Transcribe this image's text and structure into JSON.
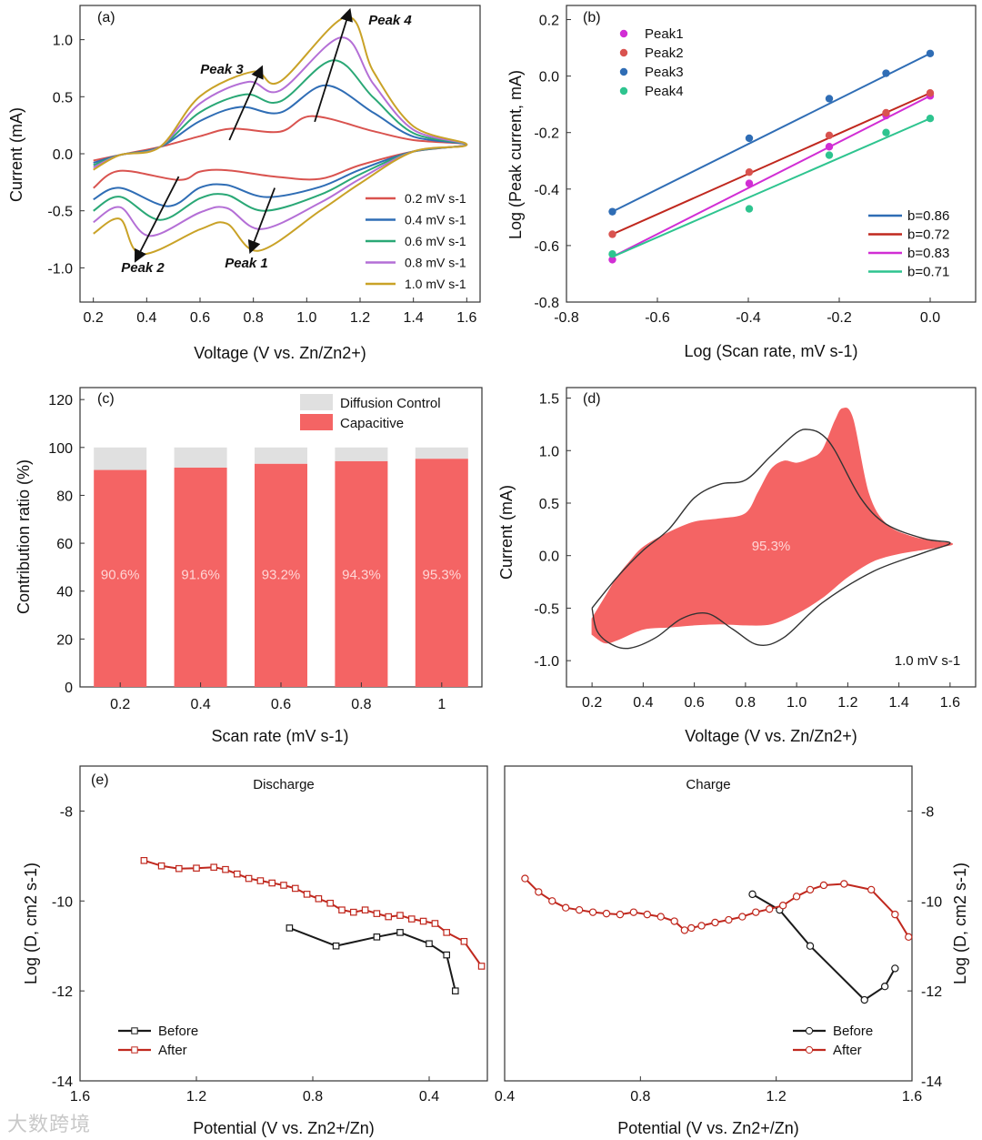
{
  "watermark": "大数跨境",
  "chart_data": [
    {
      "panel": "(a)",
      "type": "line",
      "xlabel": "Voltage (V vs. Zn/Zn2+)",
      "ylabel": "Current (mA)",
      "xlim": [
        0.15,
        1.65
      ],
      "ylim": [
        -1.3,
        1.3
      ],
      "xticks": [
        0.2,
        0.4,
        0.6,
        0.8,
        1.0,
        1.2,
        1.4,
        1.6
      ],
      "yticks": [
        -1.0,
        -0.5,
        0.0,
        0.5,
        1.0
      ],
      "legend_position": "lower-right",
      "series": [
        {
          "name": "0.2 mV s-1",
          "color": "#d9534f",
          "ox_peak3": [
            0.72,
            0.22
          ],
          "ox_peak4": [
            1.02,
            0.33
          ],
          "red_peak1": [
            0.88,
            -0.2
          ],
          "red_peak2": [
            0.52,
            -0.23
          ]
        },
        {
          "name": "0.4 mV s-1",
          "color": "#2f6db5",
          "ox_peak3": [
            0.75,
            0.41
          ],
          "ox_peak4": [
            1.07,
            0.6
          ],
          "red_peak1": [
            0.85,
            -0.38
          ],
          "red_peak2": [
            0.48,
            -0.46
          ]
        },
        {
          "name": "0.6 mV s-1",
          "color": "#2aa876",
          "ox_peak3": [
            0.77,
            0.52
          ],
          "ox_peak4": [
            1.1,
            0.82
          ],
          "red_peak1": [
            0.84,
            -0.5
          ],
          "red_peak2": [
            0.45,
            -0.58
          ]
        },
        {
          "name": "0.8 mV s-1",
          "color": "#b46fd6",
          "ox_peak3": [
            0.78,
            0.63
          ],
          "ox_peak4": [
            1.13,
            1.02
          ],
          "red_peak1": [
            0.83,
            -0.66
          ],
          "red_peak2": [
            0.41,
            -0.72
          ]
        },
        {
          "name": "1.0 mV s-1",
          "color": "#c9a227",
          "ox_peak3": [
            0.8,
            0.72
          ],
          "ox_peak4": [
            1.15,
            1.2
          ],
          "red_peak1": [
            0.82,
            -0.85
          ],
          "red_peak2": [
            0.38,
            -0.88
          ]
        }
      ],
      "annotations": [
        "Peak 1",
        "Peak 2",
        "Peak 3",
        "Peak 4"
      ]
    },
    {
      "panel": "(b)",
      "type": "scatter",
      "xlabel": "Log (Scan rate, mV s-1)",
      "ylabel": "Log (Peak current, mA)",
      "xlim": [
        -0.8,
        0.1
      ],
      "ylim": [
        -0.8,
        0.25
      ],
      "xticks": [
        -0.8,
        -0.6,
        -0.4,
        -0.2,
        0.0
      ],
      "yticks": [
        -0.8,
        -0.6,
        -0.4,
        -0.2,
        0.0,
        0.2
      ],
      "x": [
        -0.699,
        -0.398,
        -0.222,
        -0.097,
        0.0
      ],
      "series": [
        {
          "name": "Peak1",
          "color": "#d12ed4",
          "values": [
            -0.65,
            -0.38,
            -0.25,
            -0.14,
            -0.07
          ]
        },
        {
          "name": "Peak2",
          "color": "#d9534f",
          "values": [
            -0.56,
            -0.34,
            -0.21,
            -0.13,
            -0.06
          ]
        },
        {
          "name": "Peak3",
          "color": "#2f6db5",
          "values": [
            -0.48,
            -0.22,
            -0.08,
            0.01,
            0.08
          ]
        },
        {
          "name": "Peak4",
          "color": "#2ec48f",
          "values": [
            -0.63,
            -0.47,
            -0.28,
            -0.2,
            -0.15
          ]
        }
      ],
      "fits": [
        {
          "label": "b=0.86",
          "color": "#2f6db5",
          "y_start": -0.48,
          "y_end": 0.08
        },
        {
          "label": "b=0.72",
          "color": "#c0281e",
          "y_start": -0.56,
          "y_end": -0.06
        },
        {
          "label": "b=0.83",
          "color": "#d12ed4",
          "y_start": -0.64,
          "y_end": -0.07
        },
        {
          "label": "b=0.71",
          "color": "#2ec48f",
          "y_start": -0.64,
          "y_end": -0.15
        }
      ],
      "legend_position": "top-left"
    },
    {
      "panel": "(c)",
      "type": "bar",
      "xlabel": "Scan rate (mV s-1)",
      "ylabel": "Contribution ratio (%)",
      "ylim": [
        0,
        125
      ],
      "yticks": [
        0,
        20,
        40,
        60,
        80,
        100,
        120
      ],
      "categories": [
        "0.2",
        "0.4",
        "0.6",
        "0.8",
        "1"
      ],
      "series": [
        {
          "name": "Capacitive",
          "color": "#f46464",
          "values": [
            90.6,
            91.6,
            93.2,
            94.3,
            95.3
          ]
        },
        {
          "name": "Diffusion Control",
          "color": "#e0e0e0",
          "values": [
            9.4,
            8.4,
            6.8,
            5.7,
            4.7
          ]
        }
      ],
      "data_labels": [
        "90.6%",
        "91.6%",
        "93.2%",
        "94.3%",
        "95.3%"
      ],
      "legend_position": "top-right"
    },
    {
      "panel": "(d)",
      "type": "area",
      "xlabel": "Voltage (V vs. Zn/Zn2+)",
      "ylabel": "Current (mA)",
      "xlim": [
        0.1,
        1.7
      ],
      "ylim": [
        -1.25,
        1.6
      ],
      "xticks": [
        0.2,
        0.4,
        0.6,
        0.8,
        1.0,
        1.2,
        1.4,
        1.6
      ],
      "yticks": [
        -1.0,
        -0.5,
        0.0,
        0.5,
        1.0,
        1.5
      ],
      "fill_label": "95.3%",
      "note": "1.0 mV s-1",
      "capacitive_upper": [
        [
          0.2,
          -0.6
        ],
        [
          0.25,
          -0.4
        ],
        [
          0.3,
          -0.2
        ],
        [
          0.35,
          -0.05
        ],
        [
          0.4,
          0.08
        ],
        [
          0.5,
          0.22
        ],
        [
          0.6,
          0.32
        ],
        [
          0.7,
          0.35
        ],
        [
          0.8,
          0.4
        ],
        [
          0.85,
          0.6
        ],
        [
          0.9,
          0.82
        ],
        [
          0.95,
          0.9
        ],
        [
          1.0,
          0.88
        ],
        [
          1.05,
          0.92
        ],
        [
          1.1,
          1.0
        ],
        [
          1.15,
          1.28
        ],
        [
          1.18,
          1.4
        ],
        [
          1.22,
          1.3
        ],
        [
          1.28,
          0.6
        ],
        [
          1.35,
          0.3
        ],
        [
          1.45,
          0.18
        ],
        [
          1.55,
          0.13
        ],
        [
          1.6,
          0.12
        ]
      ],
      "capacitive_lower": [
        [
          1.6,
          0.1
        ],
        [
          1.5,
          0.06
        ],
        [
          1.4,
          0.02
        ],
        [
          1.3,
          -0.05
        ],
        [
          1.2,
          -0.2
        ],
        [
          1.1,
          -0.4
        ],
        [
          1.0,
          -0.55
        ],
        [
          0.9,
          -0.65
        ],
        [
          0.8,
          -0.66
        ],
        [
          0.7,
          -0.65
        ],
        [
          0.6,
          -0.66
        ],
        [
          0.5,
          -0.68
        ],
        [
          0.4,
          -0.7
        ],
        [
          0.3,
          -0.8
        ],
        [
          0.25,
          -0.83
        ],
        [
          0.2,
          -0.75
        ]
      ],
      "cv_curve": [
        [
          0.2,
          -0.5
        ],
        [
          0.3,
          -0.2
        ],
        [
          0.4,
          0.05
        ],
        [
          0.5,
          0.25
        ],
        [
          0.6,
          0.55
        ],
        [
          0.7,
          0.68
        ],
        [
          0.8,
          0.72
        ],
        [
          0.9,
          0.95
        ],
        [
          1.0,
          1.17
        ],
        [
          1.05,
          1.2
        ],
        [
          1.1,
          1.15
        ],
        [
          1.15,
          1.0
        ],
        [
          1.25,
          0.55
        ],
        [
          1.35,
          0.3
        ],
        [
          1.5,
          0.16
        ],
        [
          1.6,
          0.12
        ],
        [
          1.5,
          0.03
        ],
        [
          1.3,
          -0.15
        ],
        [
          1.1,
          -0.45
        ],
        [
          0.95,
          -0.78
        ],
        [
          0.85,
          -0.85
        ],
        [
          0.75,
          -0.7
        ],
        [
          0.65,
          -0.55
        ],
        [
          0.55,
          -0.6
        ],
        [
          0.45,
          -0.78
        ],
        [
          0.35,
          -0.88
        ],
        [
          0.28,
          -0.85
        ],
        [
          0.22,
          -0.72
        ],
        [
          0.2,
          -0.5
        ]
      ]
    },
    {
      "panel": "(e)",
      "type": "line",
      "ylabel": "Log (D, cm2 s-1)",
      "ylim": [
        -14,
        -7
      ],
      "yticks": [
        -14,
        -12,
        -10,
        -8
      ],
      "subplots": [
        {
          "title": "Discharge",
          "xlabel": "Potential (V vs. Zn2+/Zn)",
          "xlim": [
            1.6,
            0.2
          ],
          "xticks": [
            1.6,
            1.2,
            0.8,
            0.4
          ],
          "series": [
            {
              "name": "Before",
              "color": "#1a1a1a",
              "x": [
                0.88,
                0.72,
                0.58,
                0.5,
                0.4,
                0.34,
                0.31
              ],
              "values": [
                -10.6,
                -11.0,
                -10.8,
                -10.7,
                -10.95,
                -11.2,
                -12.0
              ]
            },
            {
              "name": "After",
              "color": "#c0281e",
              "x": [
                1.38,
                1.32,
                1.26,
                1.2,
                1.14,
                1.1,
                1.06,
                1.02,
                0.98,
                0.94,
                0.9,
                0.86,
                0.82,
                0.78,
                0.74,
                0.7,
                0.66,
                0.62,
                0.58,
                0.54,
                0.5,
                0.46,
                0.42,
                0.38,
                0.34,
                0.28,
                0.22
              ],
              "values": [
                -9.1,
                -9.22,
                -9.28,
                -9.27,
                -9.25,
                -9.3,
                -9.4,
                -9.5,
                -9.55,
                -9.6,
                -9.65,
                -9.72,
                -9.85,
                -9.95,
                -10.05,
                -10.2,
                -10.25,
                -10.2,
                -10.28,
                -10.35,
                -10.32,
                -10.4,
                -10.45,
                -10.5,
                -10.7,
                -10.9,
                -11.45
              ]
            }
          ],
          "legend_position": "bottom-left"
        },
        {
          "title": "Charge",
          "xlabel": "Potential (V vs. Zn2+/Zn)",
          "xlim": [
            0.4,
            1.6
          ],
          "xticks": [
            0.4,
            0.8,
            1.2,
            1.6
          ],
          "series": [
            {
              "name": "Before",
              "color": "#1a1a1a",
              "x": [
                1.13,
                1.21,
                1.3,
                1.46,
                1.52,
                1.55
              ],
              "values": [
                -9.85,
                -10.2,
                -11.0,
                -12.2,
                -11.9,
                -11.5
              ]
            },
            {
              "name": "After",
              "color": "#c0281e",
              "x": [
                0.46,
                0.5,
                0.54,
                0.58,
                0.62,
                0.66,
                0.7,
                0.74,
                0.78,
                0.82,
                0.86,
                0.9,
                0.93,
                0.95,
                0.98,
                1.02,
                1.06,
                1.1,
                1.14,
                1.18,
                1.22,
                1.26,
                1.3,
                1.34,
                1.4,
                1.48,
                1.55,
                1.59
              ],
              "values": [
                -9.5,
                -9.8,
                -10.0,
                -10.15,
                -10.2,
                -10.25,
                -10.28,
                -10.3,
                -10.25,
                -10.3,
                -10.35,
                -10.45,
                -10.65,
                -10.6,
                -10.55,
                -10.48,
                -10.42,
                -10.35,
                -10.25,
                -10.18,
                -10.1,
                -9.9,
                -9.75,
                -9.65,
                -9.62,
                -9.75,
                -10.3,
                -10.8
              ]
            }
          ],
          "legend_position": "bottom-right"
        }
      ]
    }
  ]
}
